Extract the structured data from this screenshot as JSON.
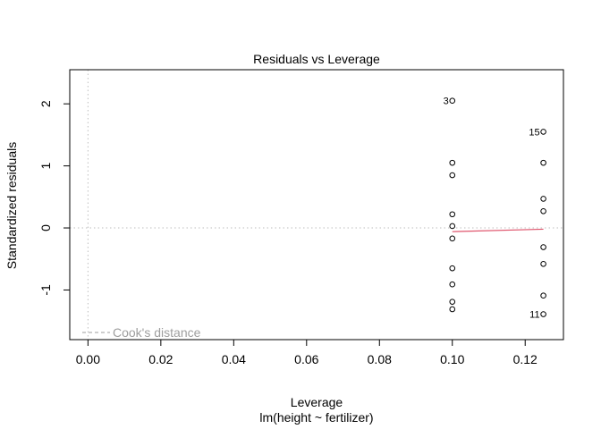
{
  "chart_data": {
    "type": "scatter",
    "title": "Residuals vs Leverage",
    "xlabel": "Leverage",
    "subtitle": "lm(height ~ fertilizer)",
    "ylabel": "Standardized residuals",
    "xlim": [
      -0.005,
      0.1305
    ],
    "ylim": [
      -1.8,
      2.55
    ],
    "x_ticks": [
      0.0,
      0.02,
      0.04,
      0.06,
      0.08,
      0.1,
      0.12
    ],
    "x_tick_labels": [
      "0.00",
      "0.02",
      "0.04",
      "0.06",
      "0.08",
      "0.10",
      "0.12"
    ],
    "y_ticks": [
      -1,
      0,
      1,
      2
    ],
    "y_tick_labels": [
      "-1",
      "0",
      "1",
      "2"
    ],
    "points": [
      {
        "x": 0.1,
        "y": 2.05
      },
      {
        "x": 0.1,
        "y": 1.05
      },
      {
        "x": 0.1,
        "y": 0.85
      },
      {
        "x": 0.1,
        "y": 0.22
      },
      {
        "x": 0.1,
        "y": 0.03
      },
      {
        "x": 0.1,
        "y": -0.17
      },
      {
        "x": 0.1,
        "y": -0.65
      },
      {
        "x": 0.1,
        "y": -0.91
      },
      {
        "x": 0.1,
        "y": -1.19
      },
      {
        "x": 0.1,
        "y": -1.31
      },
      {
        "x": 0.125,
        "y": 1.55
      },
      {
        "x": 0.125,
        "y": 1.05
      },
      {
        "x": 0.125,
        "y": 0.47
      },
      {
        "x": 0.125,
        "y": 0.27
      },
      {
        "x": 0.125,
        "y": -0.31
      },
      {
        "x": 0.125,
        "y": -0.58
      },
      {
        "x": 0.125,
        "y": -1.09
      },
      {
        "x": 0.125,
        "y": -1.39
      }
    ],
    "point_labels": [
      {
        "label": "3",
        "x": 0.1,
        "y": 2.05
      },
      {
        "label": "15",
        "x": 0.125,
        "y": 1.55
      },
      {
        "label": "11",
        "x": 0.125,
        "y": -1.39
      }
    ],
    "smooth_line": {
      "x": [
        0.1,
        0.125
      ],
      "y": [
        -0.06,
        -0.02
      ]
    },
    "reference_lines": {
      "h": 0,
      "v": 0
    },
    "legend": {
      "entries": [
        "Cook's distance"
      ],
      "placement": "bottom-left"
    },
    "colors": {
      "points": "#000000",
      "smooth": "#DF536B",
      "reference": "#BEBEBE",
      "legend": "#9E9E9E"
    }
  }
}
